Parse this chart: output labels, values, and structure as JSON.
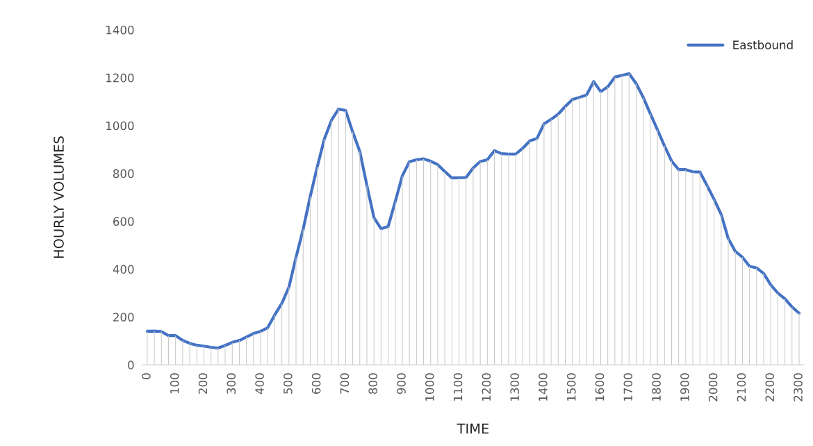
{
  "chart_data": {
    "type": "line",
    "xlabel": "TIME",
    "ylabel": "HOURLY VOLUMES",
    "categories": [
      "0",
      null,
      null,
      null,
      "100",
      null,
      null,
      null,
      "200",
      null,
      null,
      null,
      "300",
      null,
      null,
      null,
      "400",
      null,
      null,
      null,
      "500",
      null,
      null,
      null,
      "600",
      null,
      null,
      null,
      "700",
      null,
      null,
      null,
      "800",
      null,
      null,
      null,
      "900",
      null,
      null,
      null,
      "1000",
      null,
      null,
      null,
      "1100",
      null,
      null,
      null,
      "1200",
      null,
      null,
      null,
      "1300",
      null,
      null,
      null,
      "1400",
      null,
      null,
      null,
      "1500",
      null,
      null,
      null,
      "1600",
      null,
      null,
      null,
      "1700",
      null,
      null,
      null,
      "1800",
      null,
      null,
      null,
      "1900",
      null,
      null,
      null,
      "2000",
      null,
      null,
      null,
      "2100",
      null,
      null,
      null,
      "2200",
      null,
      null,
      null,
      "2300"
    ],
    "series": [
      {
        "type": "bar",
        "color": "#c8c8c8",
        "values": [
          140,
          141,
          139,
          122,
          122,
          102,
          90,
          82,
          78,
          73,
          70,
          81,
          94,
          102,
          116,
          131,
          140,
          155,
          209,
          257,
          325,
          450,
          566,
          703,
          828,
          944,
          1022,
          1069,
          1063,
          973,
          892,
          750,
          615,
          569,
          578,
          682,
          790,
          849,
          857,
          861,
          851,
          837,
          808,
          781,
          782,
          783,
          823,
          850,
          857,
          895,
          883,
          881,
          881,
          905,
          936,
          946,
          1007,
          1026,
          1048,
          1080,
          1109,
          1118,
          1128,
          1184,
          1142,
          1162,
          1203,
          1210,
          1217,
          1176,
          1118,
          1050,
          983,
          915,
          852,
          816,
          816,
          807,
          806,
          750,
          692,
          629,
          528,
          474,
          450,
          412,
          405,
          382,
          334,
          300,
          276,
          242,
          216
        ]
      },
      {
        "name": "Eastbound",
        "color": "#4472c4",
        "values": [
          140,
          141,
          139,
          122,
          122,
          102,
          90,
          82,
          78,
          73,
          70,
          81,
          94,
          102,
          116,
          131,
          140,
          155,
          209,
          257,
          325,
          450,
          566,
          703,
          828,
          944,
          1022,
          1069,
          1063,
          973,
          892,
          750,
          615,
          569,
          578,
          682,
          790,
          849,
          857,
          861,
          851,
          837,
          808,
          781,
          782,
          783,
          823,
          850,
          857,
          895,
          883,
          881,
          881,
          905,
          936,
          946,
          1007,
          1026,
          1048,
          1080,
          1109,
          1118,
          1128,
          1184,
          1142,
          1162,
          1203,
          1210,
          1217,
          1176,
          1118,
          1050,
          983,
          915,
          852,
          816,
          816,
          807,
          806,
          750,
          692,
          629,
          528,
          474,
          450,
          412,
          405,
          382,
          334,
          300,
          276,
          242,
          216
        ]
      }
    ],
    "ylim": [
      0,
      1400
    ],
    "yticks": [
      0,
      200,
      400,
      600,
      800,
      1000,
      1200,
      1400
    ],
    "legend": "top right",
    "grid": false,
    "marker": "none",
    "line_style": "solid"
  }
}
